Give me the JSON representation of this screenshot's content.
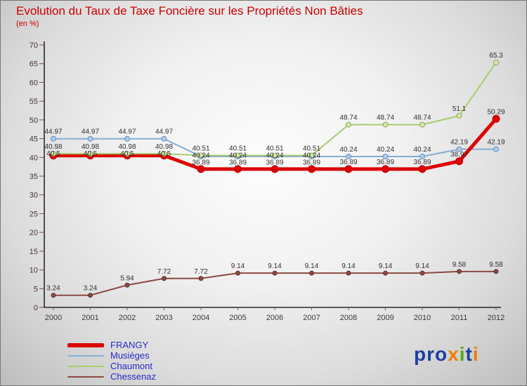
{
  "header": {
    "title": "Evolution du Taux de Taxe Foncière sur les Propriétés Non Bâties",
    "subtitle": "(en %)"
  },
  "colors": {
    "title": "#cc0000",
    "axis": "#000000",
    "ytick_mark": "#994433",
    "xtick_mark": "#666666",
    "tick_label": "#3d3a3a",
    "point_label": "#332f2f",
    "legend_label": "#2a2ac8"
  },
  "chart_data": {
    "type": "line",
    "title": "Evolution du Taux de Taxe Foncière sur les Propriétés Non Bâties",
    "ylabel": "en %",
    "x": [
      2000,
      2001,
      2002,
      2003,
      2004,
      2005,
      2006,
      2007,
      2008,
      2009,
      2010,
      2011,
      2012
    ],
    "ylim": [
      0,
      70
    ],
    "ytick_step": 5,
    "grid": false,
    "legend_position": "bottom-left",
    "series": [
      {
        "name": "FRANGY",
        "color": "#dd0000",
        "line_width": 5,
        "marker_radius": 5,
        "marker_fill": "#dd0000",
        "marker_stroke": "#bb0000",
        "values": [
          40.5,
          40.5,
          40.5,
          40.5,
          36.89,
          36.89,
          36.89,
          36.89,
          36.89,
          36.89,
          36.89,
          38.97,
          50.29
        ]
      },
      {
        "name": "Musièges",
        "color": "#85aed6",
        "line_width": 2,
        "marker_radius": 3.5,
        "marker_fill": "#aecbe8",
        "marker_stroke": "#6090c0",
        "values": [
          44.97,
          44.97,
          44.97,
          44.97,
          40.24,
          40.24,
          40.24,
          40.24,
          40.24,
          40.24,
          40.24,
          42.19,
          42.19
        ]
      },
      {
        "name": "Chaumont",
        "color": "#a8cc70",
        "line_width": 2,
        "marker_radius": 3.5,
        "marker_fill": "#d3e8ae",
        "marker_stroke": "#85ab4e",
        "values": [
          40.98,
          40.98,
          40.98,
          40.98,
          40.51,
          40.51,
          40.51,
          40.51,
          48.74,
          48.74,
          48.74,
          51.1,
          65.3
        ]
      },
      {
        "name": "Chessenaz",
        "color": "#8a4a42",
        "line_width": 2,
        "marker_radius": 3,
        "marker_fill": "#8a4a42",
        "marker_stroke": "#622f2a",
        "values": [
          3.24,
          3.24,
          5.94,
          7.72,
          7.72,
          9.14,
          9.14,
          9.14,
          9.14,
          9.14,
          9.14,
          9.58,
          9.58
        ]
      }
    ]
  },
  "logo": {
    "text": "proxiti",
    "letters": [
      {
        "ch": "p",
        "color": "#1d3e9e"
      },
      {
        "ch": "r",
        "color": "#1d3e9e"
      },
      {
        "ch": "o",
        "color": "#1d3e9e"
      },
      {
        "ch": "x",
        "color": "#f07d00"
      },
      {
        "ch": "i",
        "color": "#59a618"
      },
      {
        "ch": "t",
        "color": "#1d3e9e"
      },
      {
        "ch": "i",
        "color": "#f07d00"
      }
    ]
  }
}
